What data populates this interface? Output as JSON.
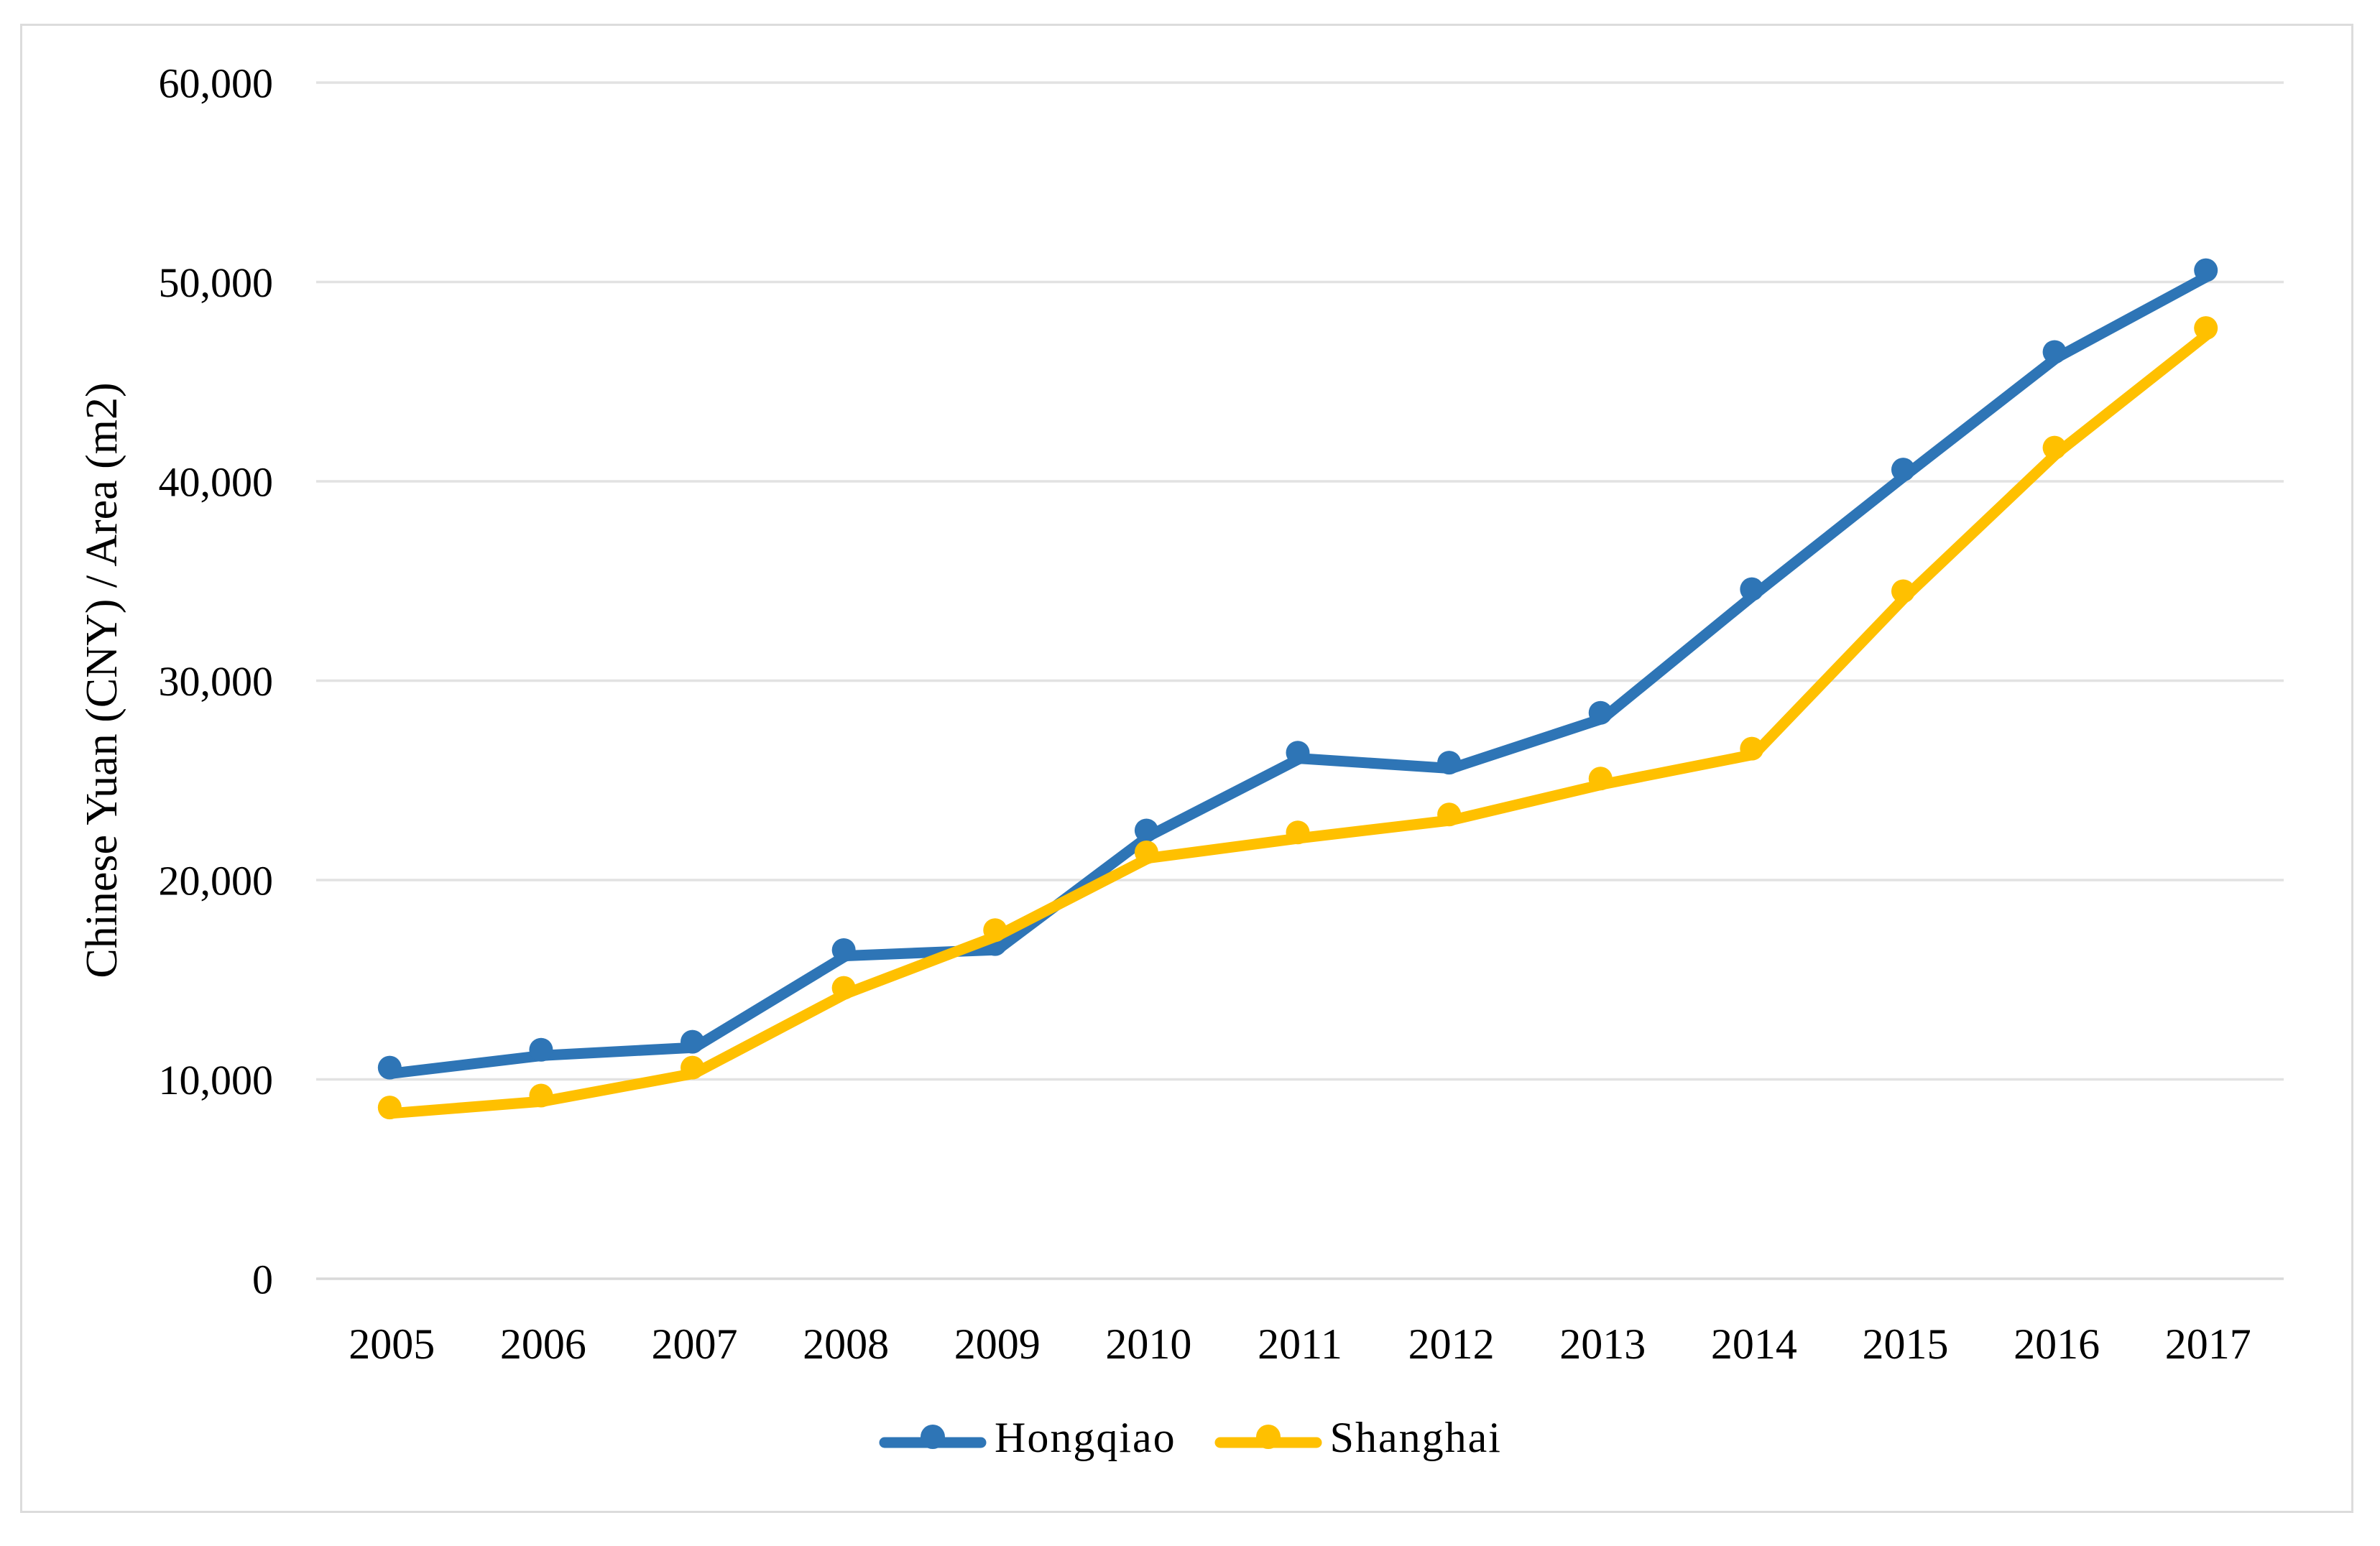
{
  "figure": {
    "background": "#FFFFFF",
    "border_color": "#DCDCDC"
  },
  "chart_data": {
    "type": "line",
    "title": "",
    "xlabel": "",
    "ylabel": "Chinese Yuan (CNY) /  Area  (m2)",
    "categories": [
      "2005",
      "2006",
      "2007",
      "2008",
      "2009",
      "2010",
      "2011",
      "2012",
      "2013",
      "2014",
      "2015",
      "2016",
      "2017"
    ],
    "series": [
      {
        "name": "Hongqiao",
        "color": "#2E75B6",
        "values": [
          10300,
          11200,
          11600,
          16200,
          16500,
          22200,
          26100,
          25600,
          28100,
          34300,
          40300,
          46200,
          50300
        ]
      },
      {
        "name": "Shanghai",
        "color": "#FFC000",
        "values": [
          8300,
          8900,
          10300,
          14300,
          17200,
          21100,
          22100,
          23000,
          24800,
          26300,
          34200,
          41400,
          47400
        ]
      }
    ],
    "ylim": [
      0,
      60000
    ],
    "yticks": [
      0,
      10000,
      20000,
      30000,
      40000,
      50000,
      60000
    ],
    "ytick_labels": [
      "0",
      "10,000",
      "20,000",
      "30,000",
      "40,000",
      "50,000",
      "60,000"
    ],
    "grid": "horizontal",
    "gridline_color": "#E2E2E2",
    "axis_line_color": "#D9D9D9",
    "text_color": "#000000",
    "legend_position": "bottom",
    "marker": "circle"
  }
}
